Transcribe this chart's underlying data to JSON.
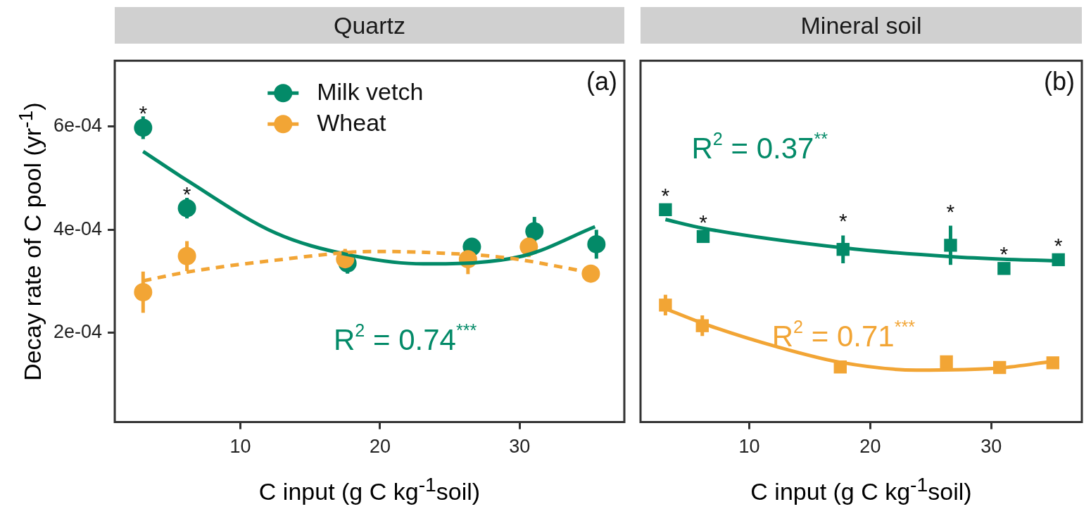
{
  "chart_data": [
    {
      "type": "scatter",
      "title": "Quartz",
      "xlabel": "C input (g C kg$^{-1}$soil)",
      "ylabel": "Decay rate of C pool (yr$^{-1}$)",
      "xlim": [
        1,
        37.5
      ],
      "xticks": [
        10,
        20,
        30
      ],
      "ylim": [
        2.7e-05,
        0.000728
      ],
      "yticks": [
        {
          "value": 0.0002,
          "label": "2e-04"
        },
        {
          "value": 0.0004,
          "label": "4e-04"
        },
        {
          "value": 0.0006,
          "label": "6e-04"
        }
      ],
      "grid": false,
      "legend": "top",
      "series": [
        {
          "name": "Milk vetch",
          "type": "scatter",
          "marker": "circle",
          "color": "#038a68",
          "x": [
            3.03,
            6.17,
            17.67,
            26.58,
            31.06,
            35.5
          ],
          "values": [
            0.000598,
            0.000442,
            0.000335,
            0.000367,
            0.000397,
            0.000372
          ],
          "errors": [
            2.2e-05,
            2e-05,
            2e-05,
            1e-05,
            2.8e-05,
            2.8e-05
          ]
        },
        {
          "name": "Wheat",
          "type": "scatter",
          "marker": "circle",
          "color": "#f2a535",
          "x": [
            3.03,
            6.17,
            17.5,
            26.3,
            30.66,
            35.1
          ],
          "values": [
            0.000279,
            0.000349,
            0.000343,
            0.000343,
            0.000367,
            0.000315
          ],
          "errors": [
            4e-05,
            2.9e-05,
            2e-05,
            2.9e-05,
            2e-05,
            null
          ]
        },
        {
          "type": "line",
          "marker": "none",
          "line_style": "solid",
          "color": "#038a68",
          "x": [
            3.03,
            6.17,
            12.5,
            17.67,
            23.1,
            30.2,
            35.4
          ],
          "values": [
            0.000552,
            0.000496,
            0.000394,
            0.000352,
            0.000334,
            0.000349,
            0.000406
          ]
        },
        {
          "type": "line",
          "marker": "none",
          "line_style": "dashed",
          "color": "#f2a535",
          "x": [
            3.03,
            6.17,
            12.5,
            19.6,
            24.3,
            29,
            35.1
          ],
          "values": [
            0.000301,
            0.000318,
            0.000341,
            0.000358,
            0.000355,
            0.000346,
            0.000317
          ]
        }
      ],
      "annotations": [
        "(a)",
        {
          "text": "*",
          "x": 3.03,
          "y": 0.000598
        },
        {
          "text": "*",
          "x": 6.17,
          "y": 0.000442
        },
        "R$^{2}$ = 0.74$^{***}$"
      ]
    },
    {
      "type": "scatter",
      "title": "Mineral soil",
      "xlabel": "C input (g C kg$^{-1}$soil)",
      "xlim": [
        1,
        37.5
      ],
      "xticks": [
        10,
        20,
        30
      ],
      "ylim": [
        2.7e-05,
        0.000728
      ],
      "grid": false,
      "tick_labels": "x",
      "series": [
        {
          "type": "scatter",
          "marker": "square",
          "color": "#038a68",
          "x": [
            3.06,
            6.18,
            17.75,
            26.64,
            31.06,
            35.56
          ],
          "values": [
            0.000439,
            0.000387,
            0.000362,
            0.00037,
            0.000325,
            0.000342
          ],
          "errors": [
            6e-06,
            8e-06,
            2.7e-05,
            3.8e-05,
            null,
            null
          ]
        },
        {
          "type": "scatter",
          "marker": "square",
          "color": "#f2a535",
          "x": [
            3.06,
            6.11,
            17.52,
            26.3,
            30.7,
            35.1
          ],
          "values": [
            0.000254,
            0.000214,
            0.000134,
            0.000144,
            0.000133,
            0.000142
          ],
          "errors": [
            2e-05,
            2e-05,
            null,
            null,
            null,
            null
          ]
        },
        {
          "type": "line",
          "marker": "none",
          "line_style": "solid",
          "color": "#038a68",
          "x": [
            3.06,
            6.18,
            17.75,
            26.64,
            31.06,
            35.56
          ],
          "values": [
            0.00042,
            0.000403,
            0.000365,
            0.000348,
            0.000343,
            0.00034
          ]
        },
        {
          "type": "line",
          "marker": "none",
          "line_style": "solid",
          "color": "#f2a535",
          "x": [
            3.06,
            6.7,
            12.3,
            17.52,
            23.8,
            30.7,
            35.1
          ],
          "values": [
            0.000247,
            0.000214,
            0.000173,
            0.000143,
            0.000128,
            0.000132,
            0.000145
          ]
        }
      ],
      "annotations": [
        "(b)",
        {
          "text": "*",
          "x": 3.06,
          "y": 0.000439
        },
        {
          "text": "*",
          "x": 6.18,
          "y": 0.000387
        },
        {
          "text": "*",
          "x": 17.75,
          "y": 0.000389
        },
        {
          "text": "*",
          "x": 26.64,
          "y": 0.000408
        },
        {
          "text": "*",
          "x": 31.06,
          "y": 0.000325
        },
        {
          "text": "*",
          "x": 35.56,
          "y": 0.000342
        },
        "R$^{2}$ = 0.37$^{**}$",
        "R$^{2}$ = 0.71$^{***}$"
      ]
    }
  ]
}
